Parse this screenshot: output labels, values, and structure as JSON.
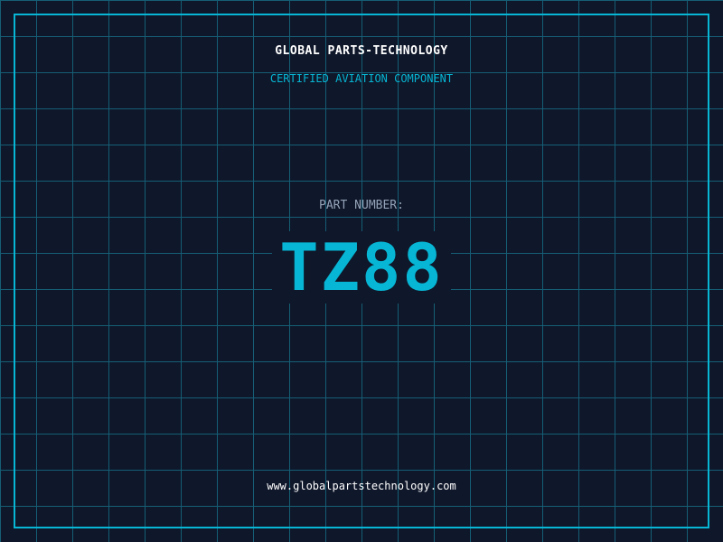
{
  "header": {
    "title": "GLOBAL PARTS-TECHNOLOGY",
    "subtitle": "CERTIFIED AVIATION COMPONENT"
  },
  "part": {
    "label": "PART NUMBER:",
    "number": "TZ88"
  },
  "footer": {
    "url": "www.globalpartstechnology.com"
  },
  "colors": {
    "background": "#0f172a",
    "accent": "#06b6d4",
    "grid": "#155e75"
  }
}
